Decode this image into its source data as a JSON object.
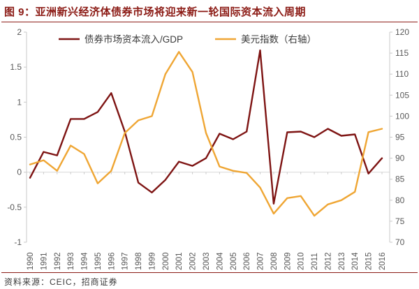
{
  "header": {
    "title": "图 9：亚洲新兴经济体债券市场将迎来新一轮国际资本流入周期"
  },
  "footer": {
    "source": "资料来源：CEIC，招商证券"
  },
  "colors": {
    "accent_red": "#8B1A14",
    "bond_line": "#7E1413",
    "dollar_line": "#EFA634",
    "axis_text": "#595959",
    "axis_line": "#C9C9C9",
    "grid_line": "#D9D9D9",
    "legend_text": "#3b3b3b"
  },
  "chart_data": {
    "type": "line",
    "title": "",
    "legend_position": "top",
    "grid": "zero-line-only",
    "categories": [
      "1990",
      "1991",
      "1992",
      "1993",
      "1994",
      "1995",
      "1996",
      "1997",
      "1998",
      "1999",
      "2000",
      "2001",
      "2002",
      "2003",
      "2004",
      "2005",
      "2006",
      "2007",
      "2008",
      "2009",
      "2010",
      "2011",
      "2012",
      "2013",
      "2014",
      "2015",
      "2016"
    ],
    "left_axis": {
      "min": -1,
      "max": 2,
      "step": 0.5,
      "labels": [
        "2",
        "1.5",
        "1",
        "0.5",
        "0",
        "-0.5",
        "-1"
      ]
    },
    "right_axis": {
      "min": 70,
      "max": 120,
      "step": 5,
      "labels": [
        "120",
        "115",
        "110",
        "105",
        "100",
        "95",
        "90",
        "85",
        "80",
        "75",
        "70"
      ]
    },
    "series": [
      {
        "name": "债券市场资本流入/GDP",
        "axis": "left",
        "color": "#7E1413",
        "values": [
          -0.08,
          0.29,
          0.24,
          0.76,
          0.76,
          0.86,
          1.13,
          0.58,
          -0.15,
          -0.29,
          -0.11,
          0.15,
          0.09,
          0.2,
          0.55,
          0.47,
          0.58,
          1.74,
          -0.45,
          0.57,
          0.58,
          0.5,
          0.62,
          0.52,
          0.54,
          -0.02,
          0.2
        ]
      },
      {
        "name": "美元指数（右轴）",
        "axis": "right",
        "color": "#EFA634",
        "values": [
          88.5,
          89.5,
          87.0,
          93.0,
          91.0,
          84.0,
          87.0,
          96.0,
          99.0,
          100.0,
          110.0,
          115.3,
          110.5,
          96.0,
          88.0,
          87.0,
          86.5,
          83.0,
          76.8,
          80.5,
          81.0,
          76.3,
          79.0,
          80.0,
          82.0,
          96.2,
          97.0
        ]
      }
    ]
  }
}
